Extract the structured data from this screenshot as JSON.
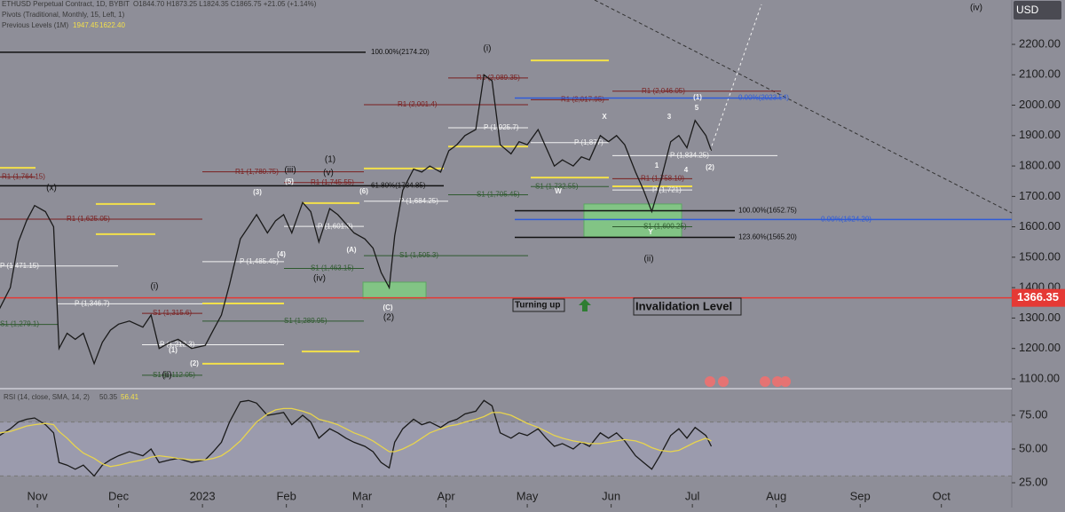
{
  "chart_data": [
    {
      "type": "line",
      "symbol": "ETHUSD Perpetual Contract, 1D, BYBIT",
      "ohlc": "O1844.70 H1873.25 L1824.35 C1865.75 +21.05 (+1.14%)",
      "indicator_1": "Pivots (Traditional, Monthly, 15, Left, 1)",
      "indicator_2": "Previous Levels (1M)",
      "indicator_2_values": [
        1947.45,
        {
          "value": 1622.4,
          "label": "1622.40"
        }
      ],
      "currency": "USD",
      "x": [
        -14,
        -10,
        -7,
        -4,
        -1,
        3,
        6,
        8,
        11,
        14,
        17,
        21,
        24,
        27,
        30,
        34,
        39,
        42,
        45,
        49,
        52,
        57,
        62,
        65,
        68,
        71,
        75,
        78,
        81,
        85,
        88,
        91,
        94,
        98,
        101,
        104,
        108,
        111,
        114,
        117,
        121,
        124,
        127,
        130,
        132,
        135,
        139,
        142,
        145,
        149,
        152,
        155,
        158,
        162,
        165,
        168,
        171,
        175,
        178,
        181,
        185,
        188,
        191,
        194,
        198,
        201,
        204,
        208,
        211,
        214,
        217,
        221,
        224,
        227,
        230,
        234,
        237,
        240,
        243,
        247,
        249
      ],
      "series": [
        {
          "color": "#1a1a1a",
          "values": [
            1330,
            1400,
            1550,
            1620,
            1670,
            1650,
            1600,
            1200,
            1250,
            1230,
            1250,
            1150,
            1220,
            1260,
            1280,
            1290,
            1270,
            1310,
            1200,
            1220,
            1230,
            1200,
            1210,
            1260,
            1310,
            1410,
            1560,
            1600,
            1640,
            1580,
            1620,
            1640,
            1580,
            1680,
            1650,
            1550,
            1660,
            1640,
            1610,
            1580,
            1560,
            1530,
            1450,
            1400,
            1570,
            1720,
            1790,
            1780,
            1800,
            1780,
            1850,
            1870,
            1900,
            1920,
            2100,
            2080,
            1870,
            1840,
            1880,
            1870,
            1920,
            1860,
            1800,
            1820,
            1800,
            1830,
            1820,
            1900,
            1880,
            1900,
            1870,
            1780,
            1720,
            1650,
            1740,
            1880,
            1900,
            1860,
            1950,
            1900,
            1850
          ]
        }
      ],
      "xlim": [
        -13.8,
        360
      ],
      "xticks": [
        {
          "value": 0,
          "label": "Nov"
        },
        {
          "value": 30,
          "label": "Dec"
        },
        {
          "value": 61,
          "label": "2023"
        },
        {
          "value": 92,
          "label": "Feb"
        },
        {
          "value": 120,
          "label": "Mar"
        },
        {
          "value": 151,
          "label": "Apr"
        },
        {
          "value": 181,
          "label": "May"
        },
        {
          "value": 212,
          "label": "Jun"
        },
        {
          "value": 242,
          "label": "Jul"
        },
        {
          "value": 273,
          "label": "Aug"
        },
        {
          "value": 304,
          "label": "Sep"
        },
        {
          "value": 334,
          "label": "Oct"
        }
      ],
      "ylim": [
        1070.7,
        2345.9
      ],
      "yticks": [
        {
          "value": 1100,
          "label": "1100.00"
        },
        {
          "value": 1200,
          "label": "1200.00"
        },
        {
          "value": 1300,
          "label": "1300.00"
        },
        {
          "value": 1400,
          "label": "1400.00"
        },
        {
          "value": 1500,
          "label": "1500.00"
        },
        {
          "value": 1600,
          "label": "1600.00"
        },
        {
          "value": 1700,
          "label": "1700.00"
        },
        {
          "value": 1800,
          "label": "1800.00"
        },
        {
          "value": 1900,
          "label": "1900.00"
        },
        {
          "value": 2000,
          "label": "2000.00"
        },
        {
          "value": 2100,
          "label": "2100.00"
        },
        {
          "value": 2200,
          "label": "2200.00"
        }
      ],
      "fib_levels": [
        {
          "label": "100.00%(2174.20)",
          "value": 2174.2,
          "color": "#111111"
        },
        {
          "label": "61.80%(1734.85)",
          "value": 1734.85,
          "color": "#111111"
        },
        {
          "label": "100.00%(1652.75)",
          "value": 1652.75,
          "color": "#111111"
        },
        {
          "label": "123.60%(1565.20)",
          "value": 1565.2,
          "color": "#111111"
        },
        {
          "label": "0.00%(2023.54)",
          "value": 2023.54,
          "color": "#2f5bd8"
        },
        {
          "label": "0.00%(1624.20)",
          "value": 1624.2,
          "color": "#2f5bd8"
        }
      ],
      "pivots": [
        {
          "label": "R1 (1,764.15)",
          "value": 1764.15,
          "color": "#7a1f1f"
        },
        {
          "label": "R1 (1,625.05)",
          "value": 1625.05,
          "color": "#7a1f1f"
        },
        {
          "label": "R1 (1,780.75)",
          "value": 1780.75,
          "color": "#7a1f1f"
        },
        {
          "label": "R1 (1,745.55)",
          "value": 1745.55,
          "color": "#7a1f1f"
        },
        {
          "label": "R1 (2,001.4)",
          "value": 2001.4,
          "color": "#7a1f1f"
        },
        {
          "label": "R1 (2,089.35)",
          "value": 2089.35,
          "color": "#7a1f1f"
        },
        {
          "label": "R1 (2,017.95)",
          "value": 2017.95,
          "color": "#7a1f1f"
        },
        {
          "label": "R1 (2,046.05)",
          "value": 2046.05,
          "color": "#7a1f1f"
        },
        {
          "label": "R1 (1,758.10)",
          "value": 1758.1,
          "color": "#7a1f1f"
        },
        {
          "label": "S1 (1,315.6)",
          "value": 1315.6,
          "color": "#7a1f1f"
        },
        {
          "label": "P (1,471.15)",
          "value": 1471.15,
          "color": "#f2f2f2"
        },
        {
          "label": "P (1,346.7)",
          "value": 1346.7,
          "color": "#f2f2f2"
        },
        {
          "label": "P (1,212.3)",
          "value": 1212.3,
          "color": "#f2f2f2"
        },
        {
          "label": "P (1,485.45)",
          "value": 1485.45,
          "color": "#f2f2f2"
        },
        {
          "label": "P (1,601.3)",
          "value": 1601.3,
          "color": "#f2f2f2"
        },
        {
          "label": "P (1,684.25)",
          "value": 1684.25,
          "color": "#f2f2f2"
        },
        {
          "label": "P (1,925.7)",
          "value": 1925.7,
          "color": "#f2f2f2"
        },
        {
          "label": "P (1,877)",
          "value": 1877,
          "color": "#f2f2f2"
        },
        {
          "label": "P (1,834.25)",
          "value": 1834.25,
          "color": "#f2f2f2"
        },
        {
          "label": "P (1,721)",
          "value": 1721,
          "color": "#f2f2f2"
        },
        {
          "label": "S1 (1,279.1)",
          "value": 1279.1,
          "color": "#2f5a2f"
        },
        {
          "label": "S1 (1,112.05)",
          "value": 1112.05,
          "color": "#2f5a2f"
        },
        {
          "label": "S1 (1,289.95)",
          "value": 1289.95,
          "color": "#2f5a2f"
        },
        {
          "label": "S1 (1,463.15)",
          "value": 1463.15,
          "color": "#2f5a2f"
        },
        {
          "label": "S1 (1,505.3)",
          "value": 1505.3,
          "color": "#2f5a2f"
        },
        {
          "label": "S1 (1,705.45)",
          "value": 1705.45,
          "color": "#2f5a2f"
        },
        {
          "label": "S1 (1,732.55)",
          "value": 1732.55,
          "color": "#2f5a2f"
        },
        {
          "label": "S1 (1,600.25)",
          "value": 1600.25,
          "color": "#2f5a2f"
        }
      ],
      "previous_level_lines": [
        1794,
        1576,
        1675,
        1348,
        1150,
        1190,
        1678,
        1792,
        1864,
        2147,
        1762,
        1733
      ],
      "previous_level_color": "#f3e04a",
      "zones": [
        {
          "low": 1363,
          "high": 1418
        },
        {
          "low": 1567,
          "high": 1675
        }
      ],
      "zone_color": "#7fd67f",
      "invalidation": 1366.35,
      "invalidation_color": "#e53935",
      "annotations": [
        "Turning up",
        "Invalidation Level"
      ],
      "wave_labels": [
        "(iv)",
        "(i)",
        "(ii)",
        "(1)",
        "(2)",
        "(iii)",
        "(v)",
        "(iv)",
        "(i)",
        "(ii)",
        "(x)",
        "(3)",
        "(4)",
        "(5)",
        "(6)",
        "(A)",
        "(C)",
        "(1)",
        "(2)",
        "W",
        "X",
        "Y",
        "1",
        "3",
        "4",
        "5",
        "(1)",
        "(2)"
      ]
    },
    {
      "type": "line",
      "title": "RSI (14, close, SMA, 14, 2)",
      "current_values": [
        50.35,
        56.41
      ],
      "series": [
        {
          "color": "#1a1a1a",
          "values": [
            60,
            65,
            70,
            72,
            73,
            68,
            62,
            40,
            38,
            35,
            38,
            30,
            38,
            42,
            45,
            48,
            45,
            50,
            40,
            42,
            43,
            40,
            42,
            48,
            55,
            70,
            85,
            86,
            84,
            75,
            76,
            77,
            68,
            75,
            70,
            58,
            65,
            62,
            58,
            55,
            52,
            48,
            40,
            36,
            55,
            65,
            72,
            68,
            70,
            66,
            70,
            72,
            76,
            78,
            86,
            82,
            62,
            58,
            62,
            60,
            65,
            58,
            52,
            54,
            50,
            55,
            52,
            62,
            58,
            62,
            56,
            45,
            40,
            35,
            45,
            60,
            65,
            58,
            66,
            60,
            52
          ]
        },
        {
          "color": "#e8d44d",
          "values": [
            62,
            63,
            65,
            67,
            68,
            69,
            68,
            63,
            58,
            52,
            47,
            43,
            39,
            37,
            38,
            40,
            42,
            44,
            45,
            44,
            43,
            42,
            42,
            43,
            45,
            49,
            56,
            63,
            70,
            76,
            79,
            80,
            80,
            78,
            76,
            72,
            70,
            68,
            65,
            62,
            59,
            56,
            52,
            48,
            48,
            50,
            54,
            58,
            62,
            65,
            67,
            68,
            70,
            72,
            74,
            77,
            77,
            75,
            72,
            69,
            66,
            63,
            60,
            58,
            56,
            55,
            54,
            54,
            55,
            56,
            57,
            56,
            54,
            51,
            49,
            48,
            49,
            52,
            55,
            58,
            56
          ]
        }
      ],
      "ylim": [
        6.6,
        93.4
      ],
      "yticks": [
        {
          "value": 25,
          "label": "25.00"
        },
        {
          "value": 50,
          "label": "50.00"
        },
        {
          "value": 75,
          "label": "75.00"
        }
      ],
      "bands": [
        70,
        30
      ]
    }
  ]
}
